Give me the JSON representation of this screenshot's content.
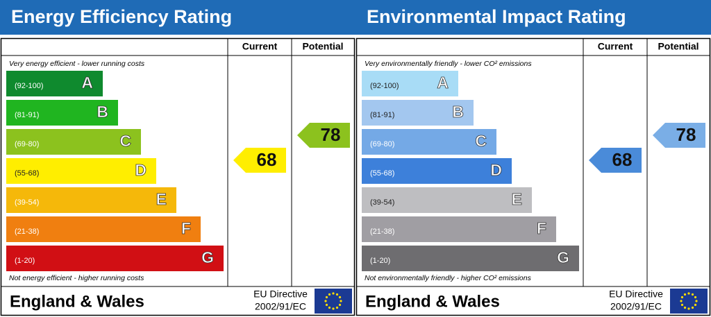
{
  "panels": [
    {
      "title": "Energy Efficiency Rating",
      "headers": [
        "Current",
        "Potential"
      ],
      "top_note": "Very energy efficient - lower running costs",
      "bottom_note": "Not energy efficient - higher running costs",
      "bands": [
        {
          "range": "(92-100)",
          "letter": "A",
          "color": "#0f8a2e",
          "text_color": "#ffffff"
        },
        {
          "range": "(81-91)",
          "letter": "B",
          "color": "#20b520",
          "text_color": "#ffffff"
        },
        {
          "range": "(69-80)",
          "letter": "C",
          "color": "#8cc21e",
          "text_color": "#ffffff"
        },
        {
          "range": "(55-68)",
          "letter": "D",
          "color": "#ffee00",
          "text_color": "#222222"
        },
        {
          "range": "(39-54)",
          "letter": "E",
          "color": "#f5b80a",
          "text_color": "#ffffff"
        },
        {
          "range": "(21-38)",
          "letter": "F",
          "color": "#f07f10",
          "text_color": "#ffffff"
        },
        {
          "range": "(1-20)",
          "letter": "G",
          "color": "#d10f14",
          "text_color": "#ffffff"
        }
      ],
      "current": {
        "value": 68,
        "color": "#ffee00"
      },
      "potential": {
        "value": 78,
        "color": "#8cc21e"
      },
      "footer": {
        "region": "England & Wales",
        "directive": "EU Directive",
        "directive_number": "2002/91/EC"
      }
    },
    {
      "title": "Environmental Impact Rating",
      "headers": [
        "Current",
        "Potential"
      ],
      "top_note": "Very environmentally friendly - lower CO² emissions",
      "bottom_note": "Not environmentally friendly - higher CO² emissions",
      "bands": [
        {
          "range": "(92-100)",
          "letter": "A",
          "color": "#a8dcf6",
          "text_color": "#222222"
        },
        {
          "range": "(81-91)",
          "letter": "B",
          "color": "#a3c7ef",
          "text_color": "#222222"
        },
        {
          "range": "(69-80)",
          "letter": "C",
          "color": "#74a9e6",
          "text_color": "#ffffff"
        },
        {
          "range": "(55-68)",
          "letter": "D",
          "color": "#3d80da",
          "text_color": "#ffffff"
        },
        {
          "range": "(39-54)",
          "letter": "E",
          "color": "#bebec1",
          "text_color": "#222222"
        },
        {
          "range": "(21-38)",
          "letter": "F",
          "color": "#a09ea3",
          "text_color": "#ffffff"
        },
        {
          "range": "(1-20)",
          "letter": "G",
          "color": "#6e6d70",
          "text_color": "#ffffff"
        }
      ],
      "current": {
        "value": 68,
        "color": "#4a8bd9"
      },
      "potential": {
        "value": 78,
        "color": "#7aaee6"
      },
      "footer": {
        "region": "England & Wales",
        "directive": "EU Directive",
        "directive_number": "2002/91/EC"
      }
    }
  ]
}
